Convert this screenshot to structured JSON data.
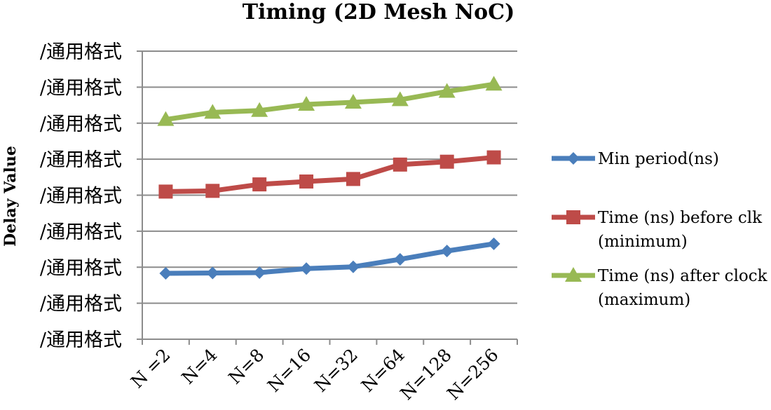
{
  "chart_data": {
    "type": "line",
    "title": "Timing (2D Mesh NoC)",
    "xlabel": "",
    "ylabel": "Delay Value",
    "categories": [
      "N =2",
      "N=4",
      "N=8",
      "N=16",
      "N=32",
      "N=64",
      "N=128",
      "N=256"
    ],
    "ytick_labels": [
      "/通用格式",
      "/通用格式",
      "/通用格式",
      "/通用格式",
      "/通用格式",
      "/通用格式",
      "/通用格式",
      "/通用格式",
      "/通用格式"
    ],
    "ylim": [
      0,
      8
    ],
    "grid": true,
    "legend_position": "right",
    "series": [
      {
        "name": "Min period(ns)",
        "legend_lines": [
          "Min period(ns)"
        ],
        "marker": "diamond",
        "color": "#4a7ebb",
        "values": [
          1.83,
          1.84,
          1.85,
          1.96,
          2.01,
          2.22,
          2.45,
          2.65
        ]
      },
      {
        "name": "Time (ns) before clk (minimum)",
        "legend_lines": [
          "Time (ns) before clk",
          "(minimum)"
        ],
        "marker": "square",
        "color": "#be4b48",
        "values": [
          4.1,
          4.12,
          4.3,
          4.38,
          4.45,
          4.85,
          4.93,
          5.05
        ]
      },
      {
        "name": "Time (ns) after clock (maximum)",
        "legend_lines": [
          "Time (ns) after clock",
          "(maximum)"
        ],
        "marker": "triangle",
        "color": "#98b954",
        "values": [
          6.1,
          6.3,
          6.35,
          6.52,
          6.58,
          6.65,
          6.88,
          7.08
        ]
      }
    ]
  }
}
